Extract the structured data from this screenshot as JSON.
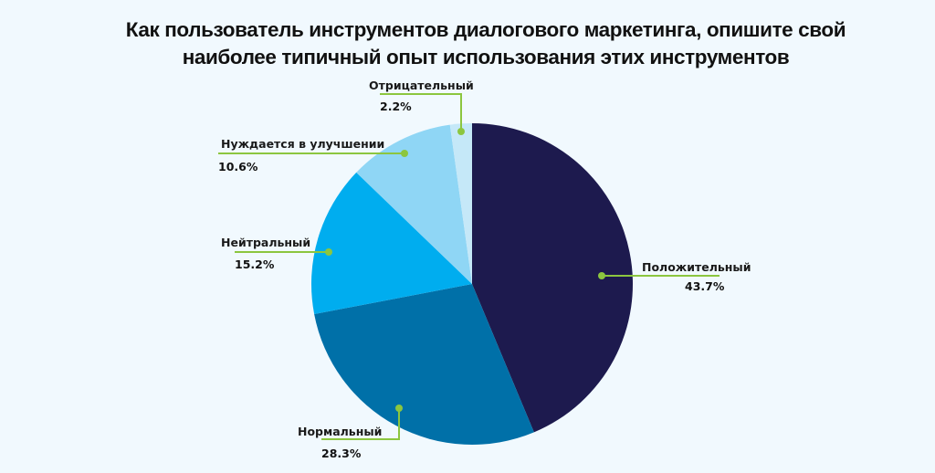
{
  "title": {
    "line1": "Как пользователь инструментов диалогового маркетинга, опишите свой",
    "line2": "наиболее типичный опыт использования этих инструментов"
  },
  "colors": {
    "background": "#f1f9fe",
    "leader": "#8cc63f",
    "slices": [
      "#1d1a4e",
      "#0070a8",
      "#00adef",
      "#8fd6f5",
      "#c5e8f8"
    ]
  },
  "labels": {
    "positive": {
      "name": "Положительный",
      "pct": "43.7%"
    },
    "normal": {
      "name": "Нормальный",
      "pct": "28.3%"
    },
    "neutral": {
      "name": "Нейтральный",
      "pct": "15.2%"
    },
    "improve": {
      "name": "Нуждается в улучшении",
      "pct": "10.6%"
    },
    "negative": {
      "name": "Отрицательный",
      "pct": "2.2%"
    }
  },
  "chart_data": {
    "type": "pie",
    "title": "Как пользователь инструментов диалогового маркетинга, опишите свой наиболее типичный опыт использования этих инструментов",
    "categories": [
      "Положительный",
      "Нормальный",
      "Нейтральный",
      "Нуждается в улучшении",
      "Отрицательный"
    ],
    "values": [
      43.7,
      28.3,
      15.2,
      10.6,
      2.2
    ],
    "unit": "%",
    "start_angle": "12 o'clock, clockwise",
    "colors": [
      "#1d1a4e",
      "#0070a8",
      "#00adef",
      "#8fd6f5",
      "#c5e8f8"
    ],
    "legend": "none (callout labels with leader lines)"
  }
}
